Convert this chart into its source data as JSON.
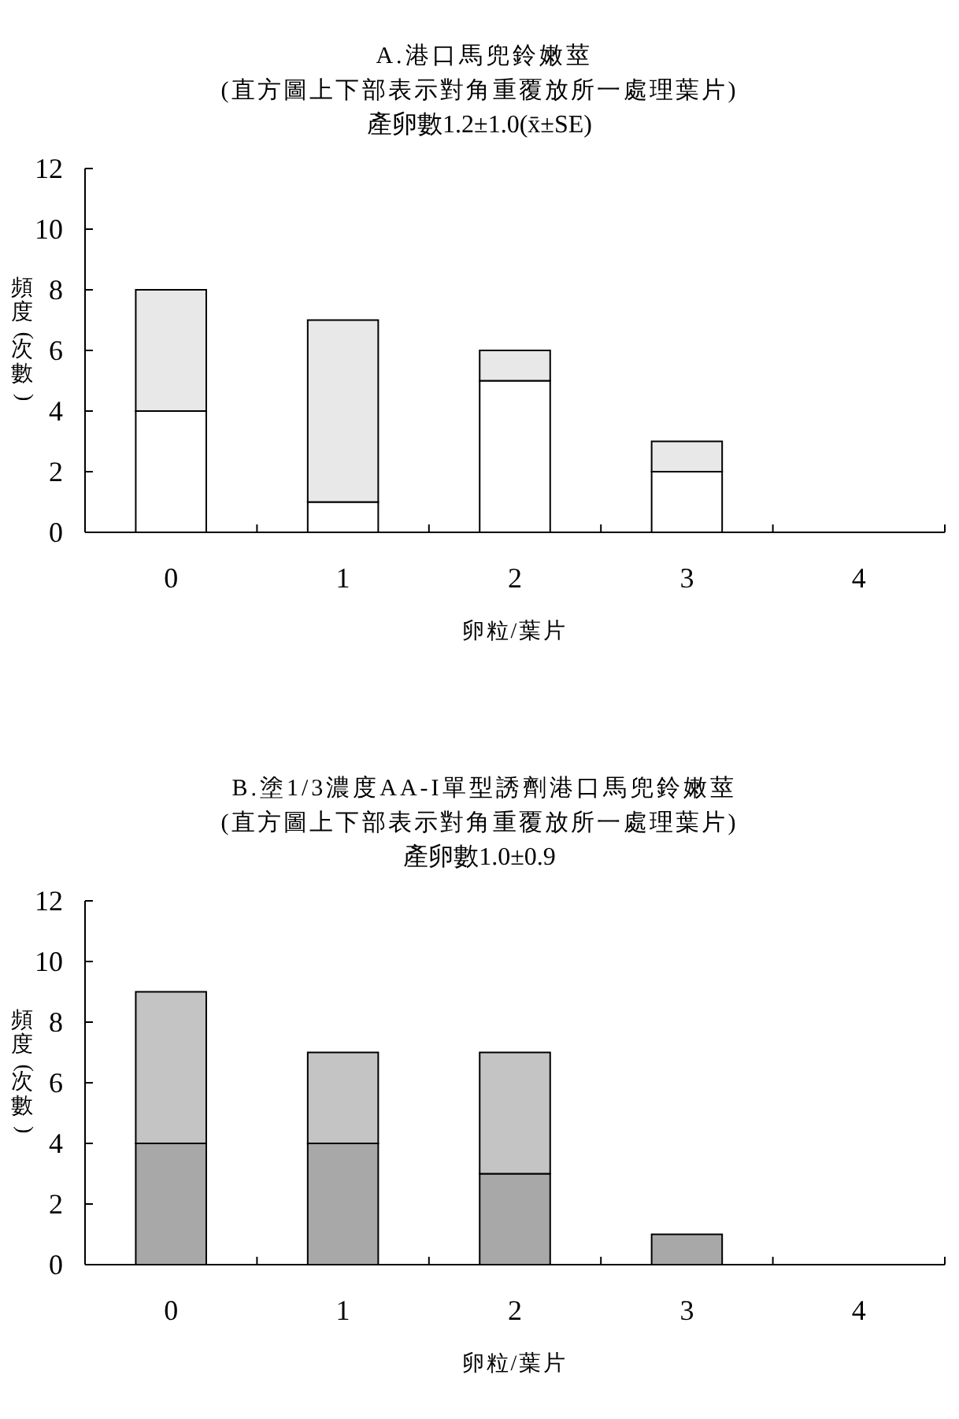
{
  "chart_data": [
    {
      "type": "bar",
      "stacked": true,
      "title": "A.港口馬兜鈴嫩莖",
      "subtitle": "(直方圖上下部表示對角重覆放所一處理葉片)",
      "annotations": [
        "產卵數1.2±1.0(x̄±SE)"
      ],
      "xlabel": "卵粒/葉片",
      "ylabel": "頻度(次數)",
      "categories": [
        "0",
        "1",
        "2",
        "3",
        "4"
      ],
      "ylim": [
        0,
        12
      ],
      "yticks": [
        0,
        2,
        4,
        6,
        8,
        10,
        12
      ],
      "grid": false,
      "series": [
        {
          "color": "#ffffff",
          "values": [
            4,
            1,
            5,
            2,
            0
          ]
        },
        {
          "color": "#e8e8e8",
          "values": [
            4,
            6,
            1,
            1,
            0
          ]
        }
      ]
    },
    {
      "type": "bar",
      "stacked": true,
      "title": "B.塗1/3濃度AA-I單型誘劑港口馬兜鈴嫩莖",
      "subtitle": "(直方圖上下部表示對角重覆放所一處理葉片)",
      "annotations": [
        "產卵數1.0±0.9"
      ],
      "xlabel": "卵粒/葉片",
      "ylabel": "頻度(次數)",
      "categories": [
        "0",
        "1",
        "2",
        "3",
        "4"
      ],
      "ylim": [
        0,
        12
      ],
      "yticks": [
        0,
        2,
        4,
        6,
        8,
        10,
        12
      ],
      "grid": false,
      "series": [
        {
          "color": "#a8a8a8",
          "values": [
            4,
            4,
            3,
            1,
            0
          ]
        },
        {
          "color": "#c4c4c4",
          "values": [
            5,
            3,
            4,
            0,
            0
          ]
        }
      ]
    }
  ]
}
